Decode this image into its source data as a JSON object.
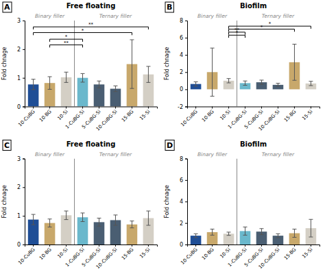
{
  "chart_data": [
    {
      "type": "bar",
      "title": "Free floating",
      "panel_label": "A",
      "y_label": "Fold chnage",
      "categories": [
        "10-CuBG",
        "10-BG",
        "10-Si",
        "1-CuBG-Si",
        "5-CuBG-Si",
        "10-CuBG-Si",
        "15-BG",
        "15-Si"
      ],
      "values": [
        0.77,
        0.82,
        1.02,
        1.0,
        0.77,
        0.62,
        1.48,
        1.12
      ],
      "errors": [
        0.18,
        0.22,
        0.18,
        0.15,
        0.12,
        0.1,
        0.85,
        0.28
      ],
      "colors": [
        "#1f4e96",
        "#c8a86b",
        "#d4cfc5",
        "#6ab8cc",
        "#4a5e72",
        "#4a5e72",
        "#c8a86b",
        "#d4cfc5"
      ],
      "ylim": [
        0,
        3
      ],
      "yticks": [
        0,
        1,
        2,
        3
      ],
      "annotations": [
        {
          "text": "Binary filler",
          "x": 1.0
        },
        {
          "text": "Ternary filler",
          "x": 5.0
        }
      ],
      "vlines": [
        2.5
      ],
      "sig_lines": [
        {
          "x1": 1,
          "x2": 3,
          "y": 2.15,
          "label": "**"
        },
        {
          "x1": 1,
          "x2": 3,
          "y": 2.35,
          "label": "*"
        },
        {
          "x1": 0,
          "x2": 6,
          "y": 2.58,
          "label": "*"
        },
        {
          "x1": 0,
          "x2": 7,
          "y": 2.78,
          "label": "**"
        }
      ],
      "grid": false
    },
    {
      "type": "bar",
      "title": "Biofilm",
      "panel_label": "B",
      "y_label": "Fold chnage",
      "categories": [
        "10-CuBG",
        "10-BG",
        "10-Si",
        "1-CuBG-Si",
        "5-CuBG-Si",
        "10-CuBG-Si",
        "15-BG",
        "15-Si"
      ],
      "values": [
        0.62,
        2.0,
        1.0,
        0.72,
        0.82,
        0.52,
        3.15,
        0.68
      ],
      "errors": [
        0.25,
        2.8,
        0.25,
        0.25,
        0.25,
        0.18,
        2.1,
        0.25
      ],
      "colors": [
        "#1f4e96",
        "#c8a86b",
        "#d4cfc5",
        "#6ab8cc",
        "#4a5e72",
        "#4a5e72",
        "#c8a86b",
        "#d4cfc5"
      ],
      "ylim": [
        -2,
        8
      ],
      "yticks": [
        -2,
        0,
        2,
        4,
        6,
        8
      ],
      "annotations": [
        {
          "text": "Binary filler",
          "x": 1.0
        },
        {
          "text": "Ternary filler",
          "x": 5.0
        }
      ],
      "vlines": [
        2.5
      ],
      "sig_lines": [
        {
          "x1": 2,
          "x2": 3,
          "y": 6.3,
          "label": "*"
        },
        {
          "x1": 2,
          "x2": 3,
          "y": 6.65,
          "label": "**"
        },
        {
          "x1": 2,
          "x2": 6,
          "y": 7.0,
          "label": "*"
        },
        {
          "x1": 2,
          "x2": 7,
          "y": 7.35,
          "label": "*"
        }
      ],
      "grid": false
    },
    {
      "type": "bar",
      "title": "Free floating",
      "panel_label": "C",
      "y_label": "Fold chnage",
      "categories": [
        "10-CuBG",
        "10-BG",
        "10-Si",
        "1-CuBG-Si",
        "5-CuBG-Si",
        "10-CuBG-Si",
        "15-BG",
        "15-Si"
      ],
      "values": [
        0.87,
        0.75,
        1.02,
        0.95,
        0.78,
        0.85,
        0.7,
        0.92
      ],
      "errors": [
        0.18,
        0.14,
        0.15,
        0.15,
        0.14,
        0.18,
        0.12,
        0.25
      ],
      "colors": [
        "#1f4e96",
        "#c8a86b",
        "#d4cfc5",
        "#6ab8cc",
        "#4a5e72",
        "#4a5e72",
        "#c8a86b",
        "#d4cfc5"
      ],
      "ylim": [
        0,
        3
      ],
      "yticks": [
        0,
        1,
        2,
        3
      ],
      "annotations": [
        {
          "text": "Binary filler",
          "x": 1.0
        },
        {
          "text": "Ternary filler",
          "x": 5.0
        }
      ],
      "vlines": [
        2.5
      ],
      "sig_lines": [],
      "grid": false
    },
    {
      "type": "bar",
      "title": "Biofilm",
      "panel_label": "D",
      "y_label": "Fold chnage",
      "categories": [
        "10-CuBG",
        "10-BG",
        "10-Si",
        "1-CuBG-Si",
        "5-CuBG-Si",
        "10-CuBG-Si",
        "15-BG",
        "15-Si"
      ],
      "values": [
        0.82,
        1.15,
        1.0,
        1.25,
        1.2,
        0.82,
        1.05,
        1.52
      ],
      "errors": [
        0.18,
        0.28,
        0.15,
        0.38,
        0.28,
        0.18,
        0.38,
        0.82
      ],
      "colors": [
        "#1f4e96",
        "#c8a86b",
        "#d4cfc5",
        "#6ab8cc",
        "#4a5e72",
        "#4a5e72",
        "#c8a86b",
        "#d4cfc5"
      ],
      "ylim": [
        0,
        8
      ],
      "yticks": [
        0,
        2,
        4,
        6,
        8
      ],
      "annotations": [
        {
          "text": "Binary filler",
          "x": 1.0
        },
        {
          "text": "Ternary filler",
          "x": 5.0
        }
      ],
      "vlines": [
        2.5
      ],
      "sig_lines": [],
      "grid": false
    }
  ]
}
